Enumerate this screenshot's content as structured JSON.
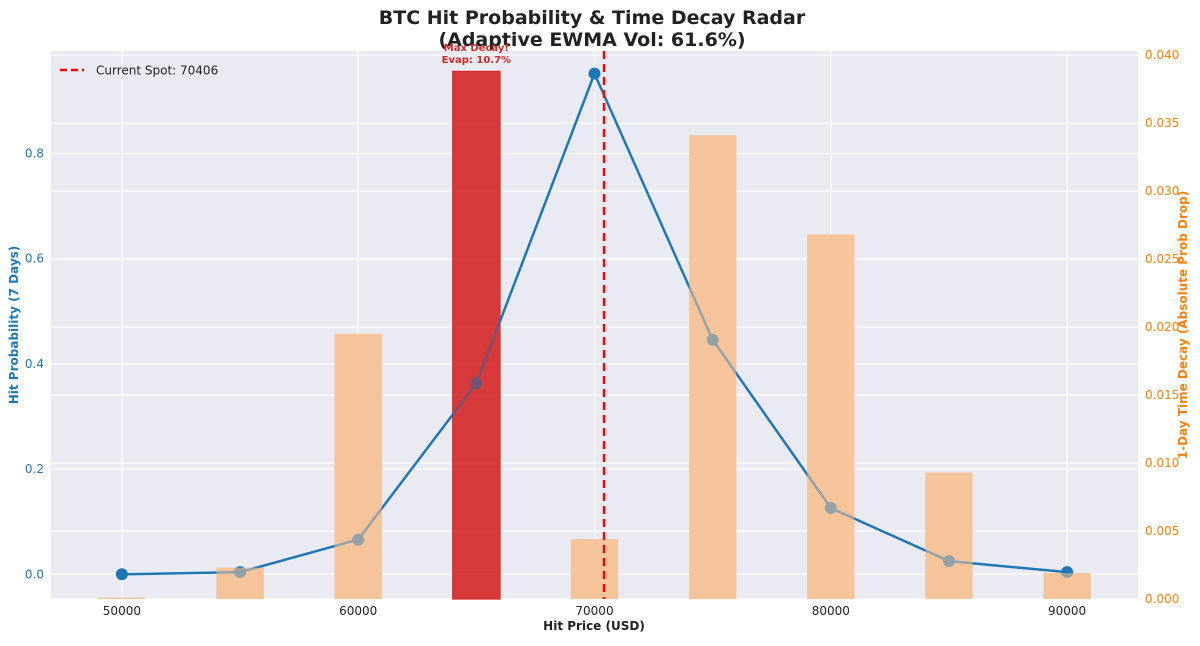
{
  "chart_data": {
    "type": "bar+line",
    "title_line1": "BTC Hit Probability & Time Decay Radar",
    "title_line2": "(Adaptive EWMA Vol: 61.6%)",
    "xlabel": "Hit Price (USD)",
    "ylabel_left": "Hit Probability (7 Days)",
    "ylabel_right": "1-Day Time Decay (Absolute Prob Drop)",
    "x_ticks": [
      50000,
      60000,
      70000,
      80000,
      90000
    ],
    "y_left_ticks": [
      "0.0",
      "0.2",
      "0.4",
      "0.6",
      "0.8"
    ],
    "y_right_ticks": [
      "0.000",
      "0.005",
      "0.010",
      "0.015",
      "0.020",
      "0.025",
      "0.030",
      "0.035",
      "0.040"
    ],
    "xlim": [
      47000,
      93000
    ],
    "ylim_left": [
      -0.047,
      0.995
    ],
    "ylim_right": [
      0,
      0.0403
    ],
    "grid": true,
    "spot": {
      "value": 70406,
      "label": "Current Spot: 70406"
    },
    "legend_position": "top-left",
    "annotation": {
      "line1": "Max Decay!",
      "line2": "Evap: 10.7%",
      "x": 65000
    },
    "hit_probability": {
      "x": [
        50000,
        55000,
        60000,
        65000,
        70000,
        75000,
        80000,
        85000,
        90000
      ],
      "values": [
        0.0,
        0.004,
        0.066,
        0.363,
        0.952,
        0.446,
        0.126,
        0.025,
        0.004
      ]
    },
    "time_decay": {
      "x": [
        50000,
        55000,
        60000,
        65000,
        70000,
        75000,
        80000,
        85000,
        90000
      ],
      "values": [
        0.0001,
        0.0023,
        0.0195,
        0.0388,
        0.0044,
        0.0341,
        0.0268,
        0.0093,
        0.0019
      ],
      "max_index": 3
    },
    "colors": {
      "line": "#1f77b4",
      "bar": "#f5c49b",
      "bar_max": "#d62728",
      "spot": "#ff0000",
      "left_axis": "#1f77b4",
      "right_axis": "#ff7f0e",
      "background": "#eaeaf2",
      "grid": "#ffffff",
      "annotation": "#d62728"
    }
  }
}
